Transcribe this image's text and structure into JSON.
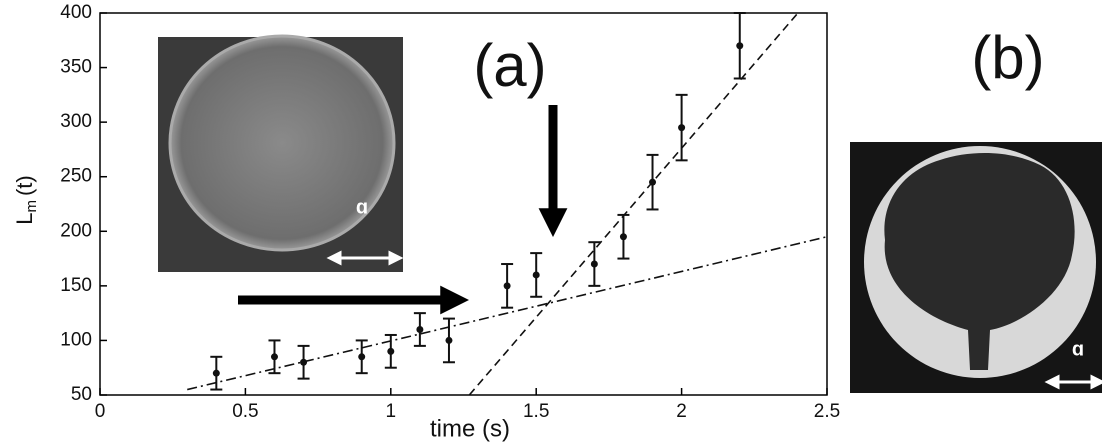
{
  "chart_data": {
    "type": "errorbar",
    "panel_a_label": "(a)",
    "panel_b_label": "(b)",
    "xlabel": "time (s)",
    "ylabel": {
      "main": "L",
      "sub": "m",
      "rest": "(t)"
    },
    "inset_labels": [
      "ɑ",
      "ɑ"
    ],
    "x": [
      0.4,
      0.6,
      0.7,
      0.9,
      1.0,
      1.1,
      1.2,
      1.4,
      1.5,
      1.7,
      1.8,
      1.9,
      2.0,
      2.2
    ],
    "values": [
      70,
      85,
      80,
      85,
      90,
      110,
      100,
      150,
      160,
      170,
      195,
      245,
      295,
      370
    ],
    "errors": [
      15,
      15,
      15,
      15,
      15,
      15,
      20,
      20,
      20,
      20,
      20,
      25,
      30,
      30
    ],
    "fits": [
      {
        "x": [
          0.3,
          2.5
        ],
        "values": [
          55,
          195
        ],
        "dash": "dashdot"
      },
      {
        "x": [
          1.27,
          2.4
        ],
        "values": [
          50,
          400
        ],
        "dash": "dash"
      }
    ],
    "color": "#111111",
    "xlim": [
      0,
      2.5
    ],
    "xticks": [
      0,
      0.5,
      1,
      1.5,
      2,
      2.5
    ],
    "ylim": [
      50,
      400
    ],
    "yticks": [
      50,
      100,
      150,
      200,
      250,
      300,
      350,
      400
    ]
  }
}
